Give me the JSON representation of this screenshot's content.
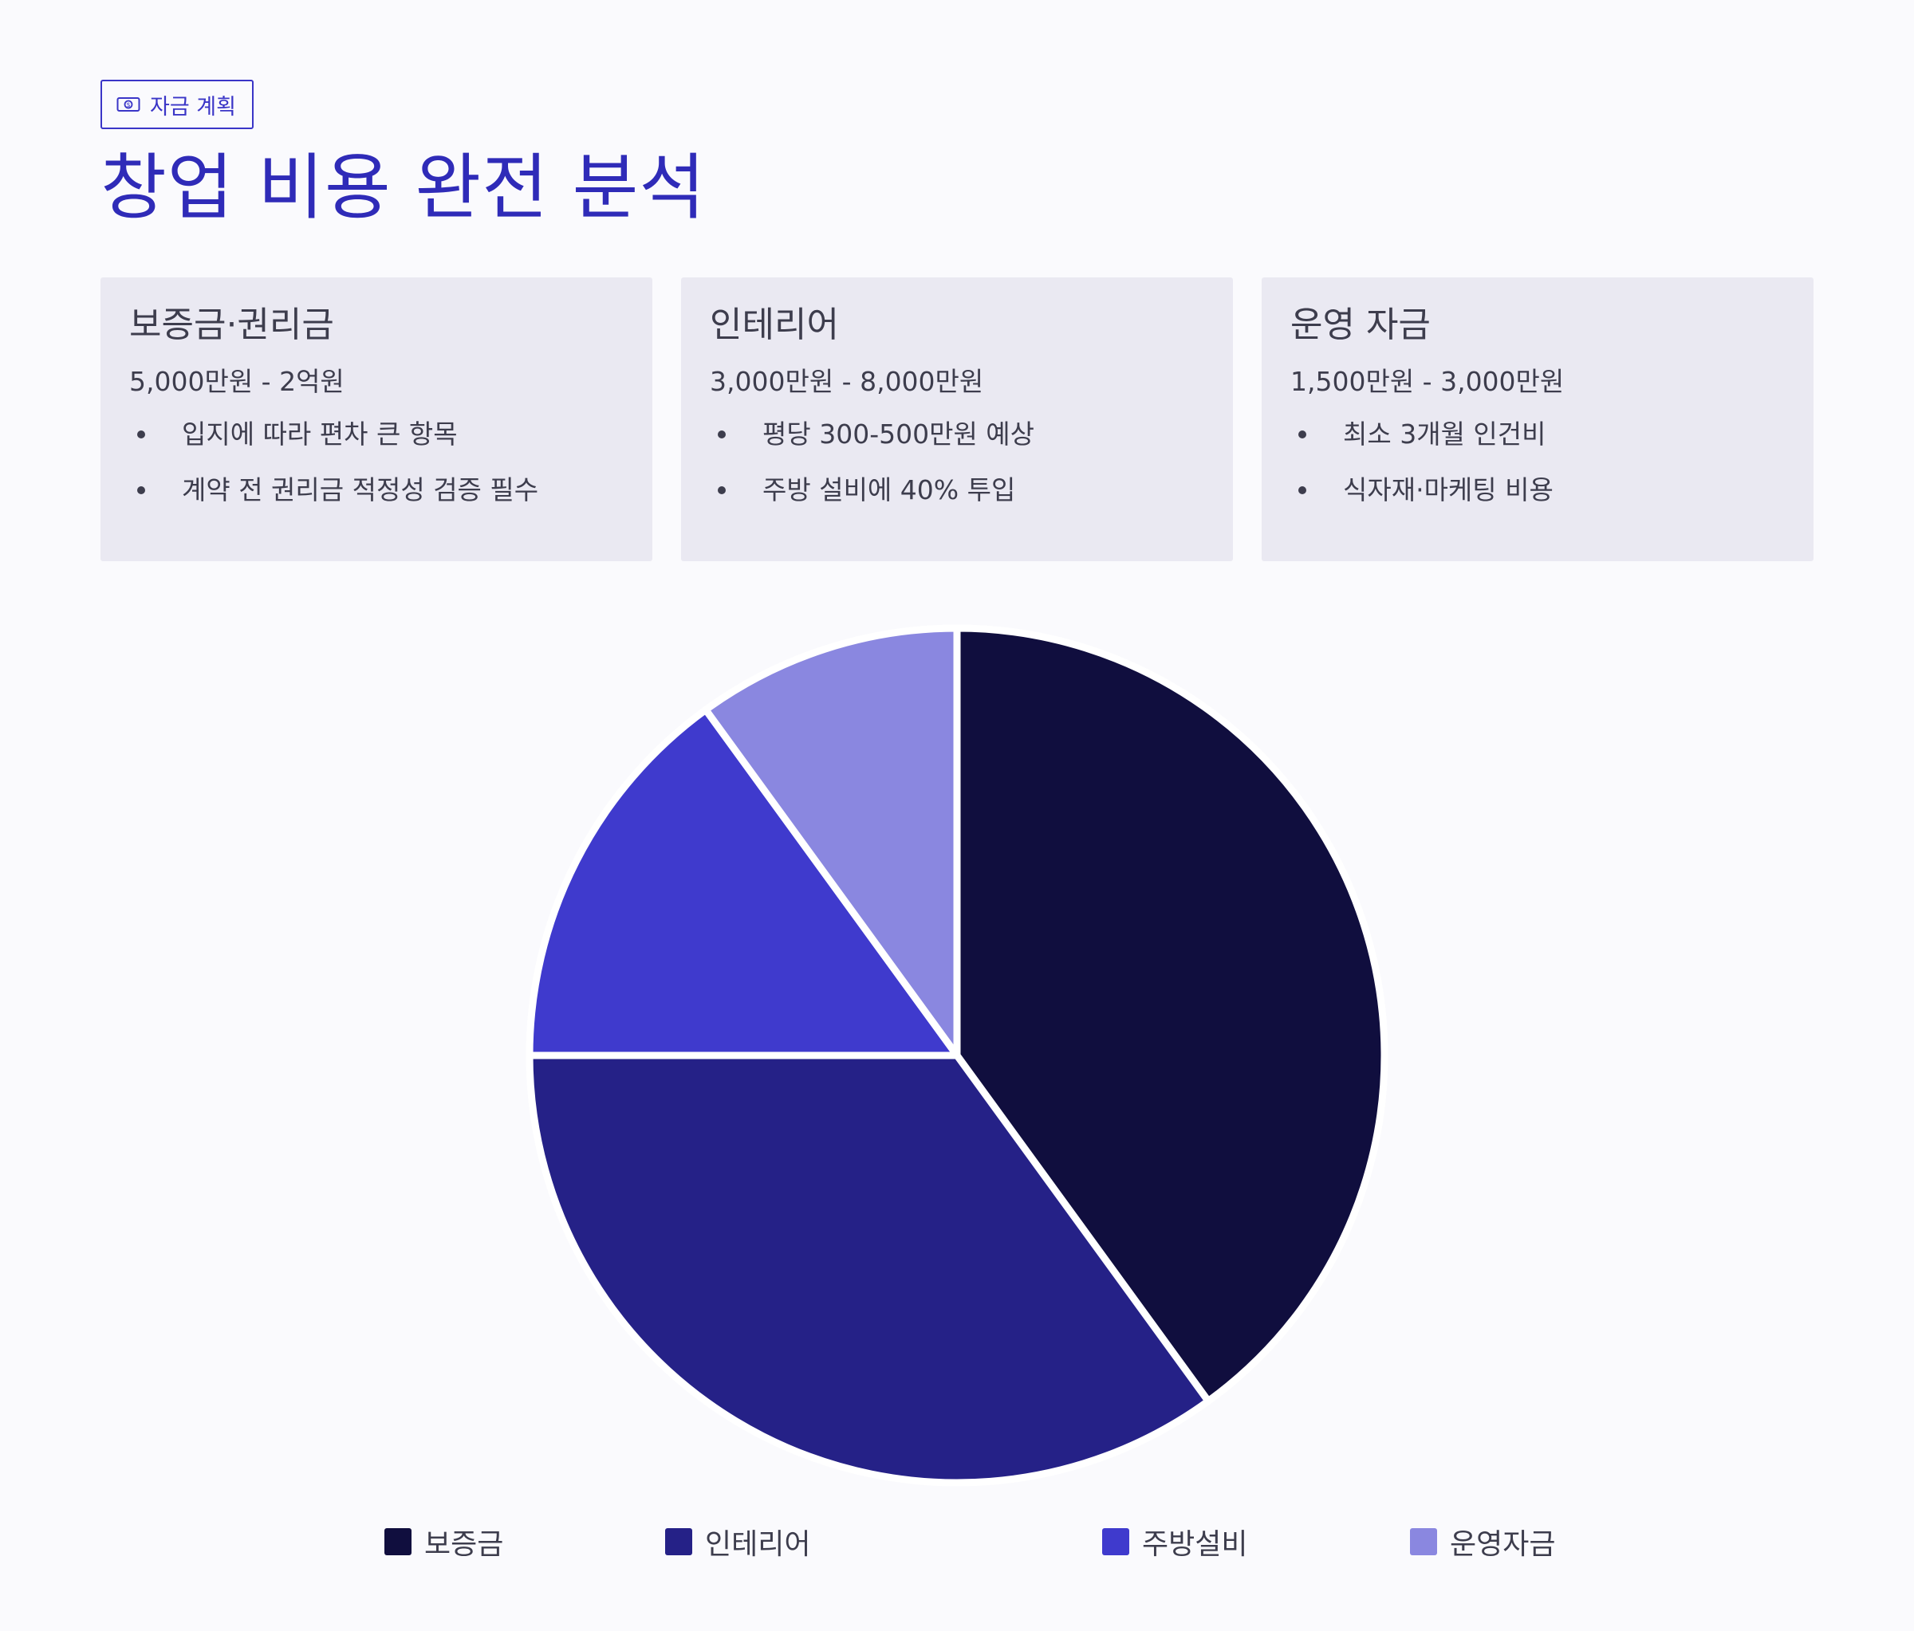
{
  "badge": {
    "label": "자금 계획",
    "icon": "money-bill-icon"
  },
  "title": "창업 비용 완전 분석",
  "cards": [
    {
      "title": "보증금·권리금",
      "range": "5,000만원 - 2억원",
      "points": [
        "입지에 따라 편차 큰 항목",
        "계약 전 권리금 적정성 검증 필수"
      ]
    },
    {
      "title": "인테리어",
      "range": "3,000만원 - 8,000만원",
      "points": [
        "평당 300-500만원 예상",
        "주방 설비에 40% 투입"
      ]
    },
    {
      "title": "운영 자금",
      "range": "1,500만원 - 3,000만원",
      "points": [
        "최소 3개월 인건비",
        "식자재·마케팅 비용"
      ]
    }
  ],
  "colors": {
    "accent": "#2f2bb8",
    "card_bg": "#eae9f2",
    "text": "#3d3d4d"
  },
  "chart_data": {
    "type": "pie",
    "categories": [
      "보증금",
      "인테리어",
      "주방설비",
      "운영자금"
    ],
    "values": [
      40,
      35,
      15,
      10
    ],
    "colors": [
      "#100e3e",
      "#252187",
      "#3f3acd",
      "#8a87e0"
    ],
    "legend_position": "bottom",
    "title": ""
  }
}
